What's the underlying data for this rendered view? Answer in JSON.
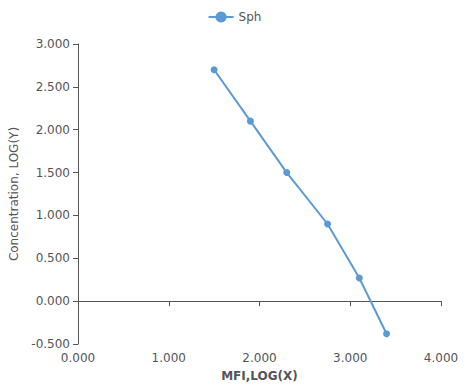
{
  "chart_data": {
    "type": "line",
    "x": [
      1.5,
      1.9,
      2.3,
      2.75,
      3.1,
      3.4
    ],
    "series": [
      {
        "name": "Sph",
        "color": "#5b9bd5",
        "marker": "circle",
        "values": [
          2.7,
          2.1,
          1.5,
          0.9,
          0.27,
          -0.38
        ]
      }
    ],
    "xlabel": "MFI,LOG(X)",
    "ylabel": "Concentration, LOG(Y)",
    "xlim": [
      0.0,
      4.0
    ],
    "ylim": [
      -0.5,
      3.0
    ],
    "xticks": [
      {
        "value": 0.0,
        "label": "0.000"
      },
      {
        "value": 1.0,
        "label": "1.000"
      },
      {
        "value": 2.0,
        "label": "2.000"
      },
      {
        "value": 3.0,
        "label": "3.000"
      },
      {
        "value": 4.0,
        "label": "4.000"
      }
    ],
    "yticks": [
      {
        "value": -0.5,
        "label": "-0.500"
      },
      {
        "value": 0.0,
        "label": "0.000"
      },
      {
        "value": 0.5,
        "label": "0.500"
      },
      {
        "value": 1.0,
        "label": "1.000"
      },
      {
        "value": 1.5,
        "label": "1.500"
      },
      {
        "value": 2.0,
        "label": "2.000"
      },
      {
        "value": 2.5,
        "label": "2.500"
      },
      {
        "value": 3.0,
        "label": "3.000"
      }
    ],
    "grid": false,
    "legend": "top"
  }
}
